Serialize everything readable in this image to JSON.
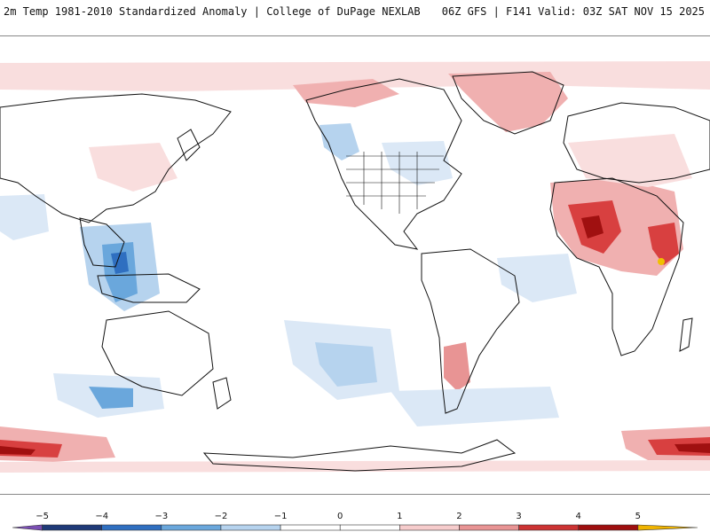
{
  "header": {
    "title_left": "2m Temp 1981-2010 Standardized Anomaly | College of DuPage NEXLAB",
    "title_right": "06Z GFS | F141 Valid: 03Z SAT NOV 15 2025"
  },
  "colorbar": {
    "min": -5.5,
    "max": 6,
    "tick_labels": [
      "−5",
      "−4",
      "−3",
      "−2",
      "−1",
      "0",
      "1",
      "2",
      "3",
      "4",
      "5"
    ],
    "tick_values": [
      -5,
      -4,
      -3,
      -2,
      -1,
      0,
      1,
      2,
      3,
      4,
      5
    ],
    "bins": [
      {
        "from": -5.5,
        "to": -5,
        "color": "#7a4fb3"
      },
      {
        "from": -5,
        "to": -4,
        "color": "#1f3a78"
      },
      {
        "from": -4,
        "to": -3,
        "color": "#2f6fc0"
      },
      {
        "from": -3,
        "to": -2,
        "color": "#6aa7dc"
      },
      {
        "from": -2,
        "to": -1,
        "color": "#b6d3ee"
      },
      {
        "from": -1,
        "to": 0,
        "color": "#ffffff"
      },
      {
        "from": 0,
        "to": 1,
        "color": "#ffffff"
      },
      {
        "from": 1,
        "to": 2,
        "color": "#f6cccc"
      },
      {
        "from": 2,
        "to": 3,
        "color": "#e89494"
      },
      {
        "from": 3,
        "to": 4,
        "color": "#cc3333"
      },
      {
        "from": 4,
        "to": 5,
        "color": "#9e0f0f"
      },
      {
        "from": 5,
        "to": 6,
        "color": "#f0b400"
      }
    ]
  },
  "map": {
    "ocean_color": "#ffffff",
    "coast_color": "#111111",
    "anomaly_colors": {
      "neg1": "#dbe8f6",
      "neg2": "#b6d3ee",
      "neg3": "#6aa7dc",
      "neg4": "#2f6fc0",
      "neg5": "#1f3a78",
      "pos1": "#f9dede",
      "pos2": "#f0b0b0",
      "pos3": "#d84040",
      "pos4": "#a01010",
      "pos5": "#f0c000"
    }
  }
}
